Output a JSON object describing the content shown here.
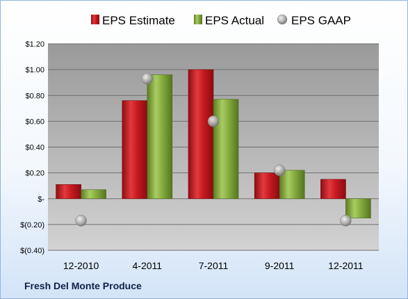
{
  "chart_data": {
    "type": "bar",
    "categories": [
      "12-2010",
      "4-2011",
      "7-2011",
      "9-2011",
      "12-2011"
    ],
    "series": [
      {
        "name": "EPS Estimate",
        "kind": "bar",
        "color": "#c0181f",
        "values": [
          0.11,
          0.76,
          1.0,
          0.2,
          0.15
        ]
      },
      {
        "name": "EPS Actual",
        "kind": "bar",
        "color": "#80a83a",
        "values": [
          0.07,
          0.96,
          0.77,
          0.22,
          -0.15
        ]
      },
      {
        "name": "EPS GAAP",
        "kind": "marker",
        "color": "#a8a8a8",
        "values": [
          -0.17,
          0.93,
          0.6,
          0.22,
          -0.17
        ]
      }
    ],
    "yticks": [
      {
        "value": 1.2,
        "label": "$1.20"
      },
      {
        "value": 1.0,
        "label": "$1.00"
      },
      {
        "value": 0.8,
        "label": "$0.80"
      },
      {
        "value": 0.6,
        "label": "$0.60"
      },
      {
        "value": 0.4,
        "label": "$0.40"
      },
      {
        "value": 0.2,
        "label": "$0.20"
      },
      {
        "value": 0.0,
        "label": "$-"
      },
      {
        "value": -0.2,
        "label": "$(0.20)"
      },
      {
        "value": -0.4,
        "label": "$(0.40)"
      }
    ],
    "ylim": [
      -0.4,
      1.2
    ],
    "grid": true,
    "legend_position": "top"
  },
  "footer": {
    "company": "Fresh Del Monte Produce"
  }
}
